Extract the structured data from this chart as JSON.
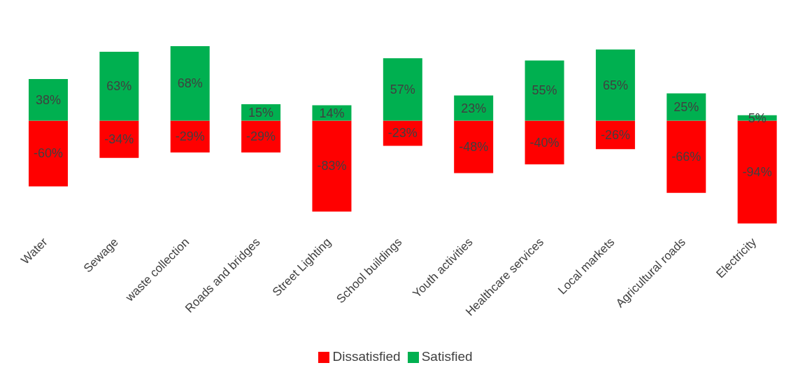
{
  "chart_data": {
    "type": "bar",
    "stacked": true,
    "categories": [
      "Water",
      "Sewage",
      "waste collection",
      "Roads and bridges",
      "Street Lighting",
      "School buildings",
      "Youth activities",
      "Healthcare services",
      "Local markets",
      "Agricultural roads",
      "Electricity"
    ],
    "series": [
      {
        "name": "Dissatisfied",
        "color": "#ff0000",
        "values": [
          -60,
          -34,
          -29,
          -29,
          -83,
          -23,
          -48,
          -40,
          -26,
          -66,
          -94
        ],
        "value_labels": [
          "-60%",
          "-34%",
          "-29%",
          "-29%",
          "-83%",
          "-23%",
          "-48%",
          "-40%",
          "-26%",
          "-66%",
          "-94%"
        ]
      },
      {
        "name": "Satisfied",
        "color": "#00b050",
        "values": [
          38,
          63,
          68,
          15,
          14,
          57,
          23,
          55,
          65,
          25,
          5
        ],
        "value_labels": [
          "38%",
          "63%",
          "68%",
          "15%",
          "14%",
          "57%",
          "23%",
          "55%",
          "65%",
          "25%",
          "5%"
        ]
      }
    ],
    "tick_labels": "x",
    "legend": "bottom"
  }
}
